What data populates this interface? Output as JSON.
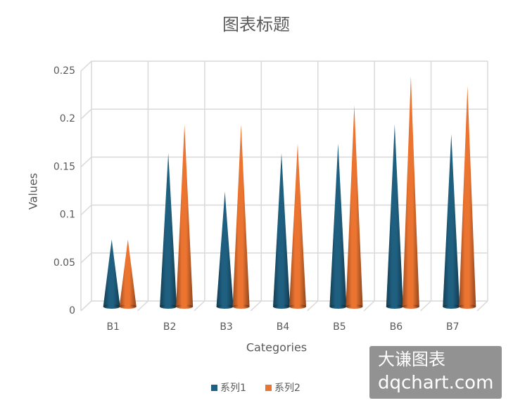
{
  "chart_data": {
    "type": "cone",
    "title": "图表标题",
    "x_label": "Categories",
    "y_label": "Values",
    "categories": [
      "B1",
      "B2",
      "B3",
      "B4",
      "B5",
      "B6",
      "B7"
    ],
    "series": [
      {
        "name": "系列1",
        "color": "#1f5f80",
        "values": [
          0.07,
          0.16,
          0.12,
          0.16,
          0.17,
          0.19,
          0.18
        ]
      },
      {
        "name": "系列2",
        "color": "#ec7431",
        "values": [
          0.07,
          0.19,
          0.19,
          0.17,
          0.21,
          0.24,
          0.23
        ]
      }
    ],
    "ylim": [
      0,
      0.25
    ],
    "yticks": [
      0,
      0.05,
      0.1,
      0.15,
      0.2,
      0.25
    ],
    "grid": true,
    "legend": "bottom"
  },
  "watermark": [
    "大谦图表",
    "dqchart.com"
  ]
}
